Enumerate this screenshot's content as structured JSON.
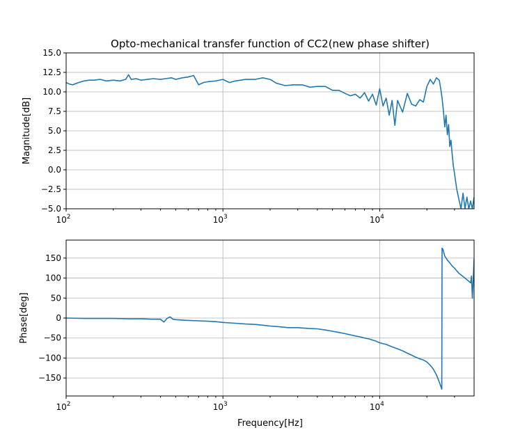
{
  "chart_data": [
    {
      "type": "line",
      "title": "Opto-mechanical transfer function of CC2(new phase shifter)",
      "xlabel": "",
      "ylabel": "Magnitude[dB]",
      "xscale": "log",
      "xlim": [
        100,
        40000
      ],
      "ylim": [
        -5,
        15
      ],
      "grid": true,
      "color": "#1f77b4",
      "xticks": [
        {
          "value": 100,
          "base": "10",
          "exp": "2"
        },
        {
          "value": 1000,
          "base": "10",
          "exp": "3"
        },
        {
          "value": 10000,
          "base": "10",
          "exp": "4"
        }
      ],
      "yticks": [
        {
          "value": -5,
          "label": "−5.0"
        },
        {
          "value": -2.5,
          "label": "−2.5"
        },
        {
          "value": 0,
          "label": "0.0"
        },
        {
          "value": 2.5,
          "label": "2.5"
        },
        {
          "value": 5,
          "label": "5.0"
        },
        {
          "value": 7.5,
          "label": "7.5"
        },
        {
          "value": 10,
          "label": "10.0"
        },
        {
          "value": 12.5,
          "label": "12.5"
        },
        {
          "value": 15,
          "label": "15.0"
        }
      ],
      "series": [
        {
          "x": [
            100,
            105,
            110,
            120,
            130,
            140,
            150,
            165,
            180,
            200,
            220,
            240,
            250,
            260,
            280,
            300,
            330,
            360,
            400,
            430,
            470,
            500,
            550,
            600,
            650,
            700,
            750,
            800,
            900,
            1000,
            1100,
            1200,
            1400,
            1600,
            1800,
            2000,
            2200,
            2500,
            2800,
            3200,
            3600,
            4000,
            4500,
            5000,
            5500,
            6000,
            6500,
            7000,
            7500,
            8000,
            8500,
            9000,
            9500,
            10000,
            10500,
            11000,
            11500,
            12000,
            12500,
            13000,
            14000,
            15000,
            16000,
            17000,
            18000,
            19000,
            20000,
            21000,
            22000,
            23000,
            24000,
            24500,
            25000,
            25500,
            26000,
            26500,
            27000,
            27500,
            28000,
            28500,
            29000,
            29500,
            30000,
            31000,
            32000,
            33000,
            34000,
            35000,
            36000,
            37000,
            38000,
            39000,
            40000
          ],
          "y": [
            11.2,
            11.0,
            10.9,
            11.2,
            11.4,
            11.5,
            11.5,
            11.6,
            11.4,
            11.5,
            11.4,
            11.6,
            12.2,
            11.6,
            11.7,
            11.5,
            11.6,
            11.7,
            11.6,
            11.7,
            11.8,
            11.6,
            11.8,
            11.9,
            12.1,
            10.9,
            11.2,
            11.3,
            11.4,
            11.6,
            11.2,
            11.4,
            11.6,
            11.6,
            11.8,
            11.6,
            11.1,
            10.8,
            10.9,
            10.9,
            10.6,
            10.7,
            10.7,
            10.2,
            10.2,
            9.8,
            9.5,
            9.7,
            9.2,
            9.9,
            8.8,
            9.7,
            8.3,
            10.4,
            8.2,
            9.2,
            7.0,
            8.9,
            5.7,
            8.9,
            7.4,
            9.8,
            8.4,
            8.2,
            9.0,
            8.7,
            10.7,
            11.6,
            11.0,
            11.8,
            11.5,
            10.4,
            9.2,
            7.5,
            5.5,
            7.0,
            4.5,
            5.8,
            3.0,
            3.8,
            2.0,
            0.5,
            -0.5,
            -2.5,
            -3.8,
            -5.0,
            -3.0,
            -5.0,
            -3.5,
            -5.0,
            -4.0,
            -5.0,
            -3.5
          ]
        }
      ]
    },
    {
      "type": "line",
      "title": "",
      "xlabel": "Frequency[Hz]",
      "ylabel": "Phase[deg]",
      "xscale": "log",
      "xlim": [
        100,
        40000
      ],
      "ylim": [
        -195,
        195
      ],
      "grid": true,
      "color": "#1f77b4",
      "xticks": [
        {
          "value": 100,
          "base": "10",
          "exp": "2"
        },
        {
          "value": 1000,
          "base": "10",
          "exp": "3"
        },
        {
          "value": 10000,
          "base": "10",
          "exp": "4"
        }
      ],
      "yticks": [
        {
          "value": -150,
          "label": "−150"
        },
        {
          "value": -100,
          "label": "−100"
        },
        {
          "value": -50,
          "label": "−50"
        },
        {
          "value": 0,
          "label": "0"
        },
        {
          "value": 50,
          "label": "50"
        },
        {
          "value": 100,
          "label": "100"
        },
        {
          "value": 150,
          "label": "150"
        }
      ],
      "series": [
        {
          "x": [
            100,
            130,
            160,
            200,
            250,
            300,
            350,
            400,
            420,
            440,
            460,
            480,
            500,
            600,
            700,
            800,
            900,
            1000,
            1200,
            1400,
            1600,
            1800,
            2000,
            2300,
            2600,
            3000,
            3500,
            4000,
            4500,
            5000,
            5500,
            6000,
            6500,
            7000,
            7500,
            8000,
            8500,
            9000,
            9500,
            10000,
            11000,
            12000,
            13000,
            14000,
            15000,
            16000,
            17000,
            18000,
            19000,
            20000,
            21000,
            22000,
            23000,
            24000,
            24900,
            25000,
            25300,
            26000,
            27000,
            28000,
            29000,
            30000,
            31000,
            32000,
            33000,
            34000,
            35000,
            36000,
            37000,
            38000,
            38500,
            39000,
            39500,
            40000
          ],
          "y": [
            0,
            -1,
            -1,
            -1,
            -2,
            -2,
            -3,
            -3,
            -10,
            -1,
            3,
            -3,
            -4,
            -6,
            -7,
            -8,
            -9,
            -11,
            -13,
            -15,
            -16,
            -18,
            -20,
            -22,
            -24,
            -24,
            -26,
            -27,
            -30,
            -33,
            -36,
            -39,
            -42,
            -45,
            -47,
            -50,
            -52,
            -55,
            -58,
            -62,
            -66,
            -72,
            -77,
            -82,
            -88,
            -93,
            -98,
            -102,
            -105,
            -110,
            -118,
            -128,
            -142,
            -160,
            -178,
            175,
            172,
            155,
            145,
            138,
            130,
            125,
            118,
            112,
            108,
            104,
            100,
            96,
            92,
            88,
            105,
            50,
            95,
            148
          ]
        }
      ]
    }
  ]
}
